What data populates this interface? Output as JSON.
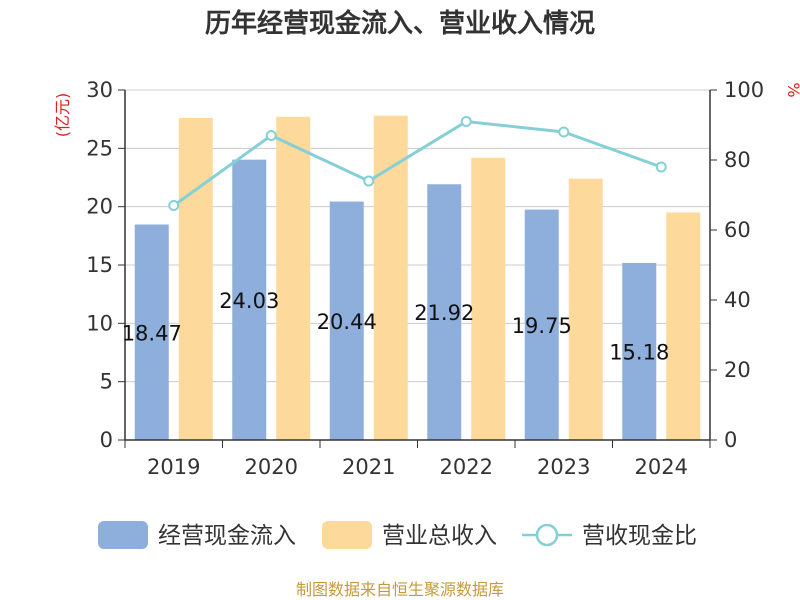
{
  "chart_data": {
    "type": "bar",
    "title": "历年经营现金流入、营业收入情况",
    "categories": [
      "2019",
      "2020",
      "2021",
      "2022",
      "2023",
      "2024"
    ],
    "series": [
      {
        "name": "经营现金流入",
        "kind": "bar",
        "axis": "left",
        "color": "#8eaedb",
        "values": [
          18.47,
          24.03,
          20.44,
          21.92,
          19.75,
          15.18
        ],
        "labels": [
          "18.47",
          "24.03",
          "20.44",
          "21.92",
          "19.75",
          "15.18"
        ]
      },
      {
        "name": "营业总收入",
        "kind": "bar",
        "axis": "left",
        "color": "#fdd99b",
        "values": [
          27.6,
          27.7,
          27.8,
          24.2,
          22.4,
          19.5
        ]
      },
      {
        "name": "营收现金比",
        "kind": "line",
        "axis": "right",
        "color": "#85d0d6",
        "values": [
          67,
          87,
          74,
          91,
          88,
          78
        ]
      }
    ],
    "y_left": {
      "label": "(亿元)",
      "ylim": [
        0,
        30
      ],
      "ticks": [
        "0",
        "5",
        "10",
        "15",
        "20",
        "25",
        "30"
      ]
    },
    "y_right": {
      "label": "%",
      "ylim": [
        0,
        100
      ],
      "ticks": [
        "0",
        "20",
        "40",
        "60",
        "80",
        "100"
      ]
    },
    "grid": true,
    "legend_position": "bottom"
  },
  "source": "制图数据来自恒生聚源数据库"
}
